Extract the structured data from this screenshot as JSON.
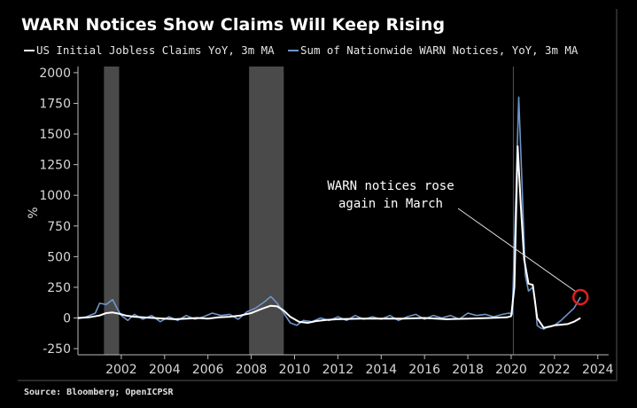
{
  "title": "WARN Notices Show Claims Will Keep Rising",
  "source": "Source: Bloomberg; OpenICPSR",
  "colors": {
    "background": "#000000",
    "claims": "#ffffff",
    "warn": "#6f95c9",
    "recession": "#4a4a4a",
    "highlight": "#e0201f"
  },
  "chart_data": {
    "type": "line",
    "title": "WARN Notices Show Claims Will Keep Rising",
    "ylabel": "%",
    "ylim": [
      -300,
      2050
    ],
    "xlim": [
      2000,
      2024.5
    ],
    "yticks": [
      -250,
      0,
      250,
      500,
      750,
      1000,
      1250,
      1500,
      1750,
      2000
    ],
    "xticks": [
      2002,
      2004,
      2006,
      2008,
      2010,
      2012,
      2014,
      2016,
      2018,
      2020,
      2022,
      2024
    ],
    "grid": false,
    "legend_position": "top-left",
    "recessions": [
      [
        2001.2,
        2001.9
      ],
      [
        2007.9,
        2009.5
      ]
    ],
    "series": [
      {
        "name": "US Initial Jobless Claims YoY, 3m MA",
        "x": [
          2000.0,
          2000.5,
          2001.0,
          2001.3,
          2001.6,
          2001.9,
          2002.2,
          2002.6,
          2003.0,
          2003.5,
          2004.0,
          2004.5,
          2005.0,
          2005.5,
          2006.0,
          2006.5,
          2007.0,
          2007.5,
          2008.0,
          2008.5,
          2008.9,
          2009.2,
          2009.5,
          2009.8,
          2010.2,
          2010.6,
          2011.0,
          2011.5,
          2012.0,
          2013.0,
          2014.0,
          2015.0,
          2016.0,
          2017.0,
          2018.0,
          2019.0,
          2019.8,
          2020.0,
          2020.15,
          2020.3,
          2020.45,
          2020.6,
          2020.8,
          2021.0,
          2021.2,
          2021.5,
          2021.8,
          2022.0,
          2022.3,
          2022.6,
          2022.9,
          2023.2
        ],
        "values": [
          0,
          5,
          20,
          40,
          45,
          35,
          20,
          10,
          5,
          0,
          -5,
          -10,
          -5,
          0,
          -5,
          5,
          10,
          20,
          40,
          75,
          100,
          95,
          60,
          10,
          -30,
          -40,
          -25,
          -15,
          -10,
          -5,
          -5,
          -5,
          0,
          -10,
          -5,
          0,
          5,
          15,
          250,
          1400,
          900,
          480,
          280,
          270,
          0,
          -80,
          -70,
          -60,
          -55,
          -50,
          -30,
          0
        ]
      },
      {
        "name": "Sum of Nationwide WARN Notices, YoY, 3m MA",
        "x": [
          2000.0,
          2000.4,
          2000.8,
          2001.0,
          2001.3,
          2001.6,
          2001.8,
          2002.0,
          2002.3,
          2002.6,
          2003.0,
          2003.4,
          2003.8,
          2004.2,
          2004.6,
          2005.0,
          2005.4,
          2005.8,
          2006.2,
          2006.6,
          2007.0,
          2007.4,
          2007.8,
          2008.2,
          2008.6,
          2008.9,
          2009.2,
          2009.5,
          2009.8,
          2010.1,
          2010.4,
          2010.8,
          2011.2,
          2011.6,
          2012.0,
          2012.4,
          2012.8,
          2013.2,
          2013.6,
          2014.0,
          2014.4,
          2014.8,
          2015.2,
          2015.6,
          2016.0,
          2016.4,
          2016.8,
          2017.2,
          2017.6,
          2018.0,
          2018.4,
          2018.8,
          2019.2,
          2019.6,
          2019.9,
          2020.05,
          2020.2,
          2020.35,
          2020.5,
          2020.65,
          2020.8,
          2021.0,
          2021.1,
          2021.2,
          2021.35,
          2021.5,
          2021.7,
          2022.0,
          2022.3,
          2022.6,
          2022.9,
          2023.1,
          2023.2
        ],
        "values": [
          -5,
          10,
          40,
          120,
          110,
          150,
          80,
          20,
          -20,
          30,
          -10,
          20,
          -30,
          10,
          -20,
          20,
          -10,
          10,
          40,
          20,
          30,
          -10,
          50,
          80,
          130,
          175,
          120,
          40,
          -40,
          -60,
          -20,
          -30,
          0,
          -20,
          10,
          -20,
          20,
          -10,
          10,
          -10,
          20,
          -20,
          10,
          30,
          -10,
          20,
          0,
          20,
          -10,
          40,
          20,
          30,
          10,
          30,
          40,
          30,
          900,
          1800,
          1100,
          350,
          220,
          250,
          150,
          -60,
          -80,
          -90,
          -70,
          -60,
          -20,
          30,
          80,
          140,
          170
        ]
      }
    ],
    "annotations": [
      {
        "text": [
          "WARN notices rose",
          "again in March"
        ],
        "target_x": 2023.2,
        "target_y": 170
      }
    ]
  }
}
